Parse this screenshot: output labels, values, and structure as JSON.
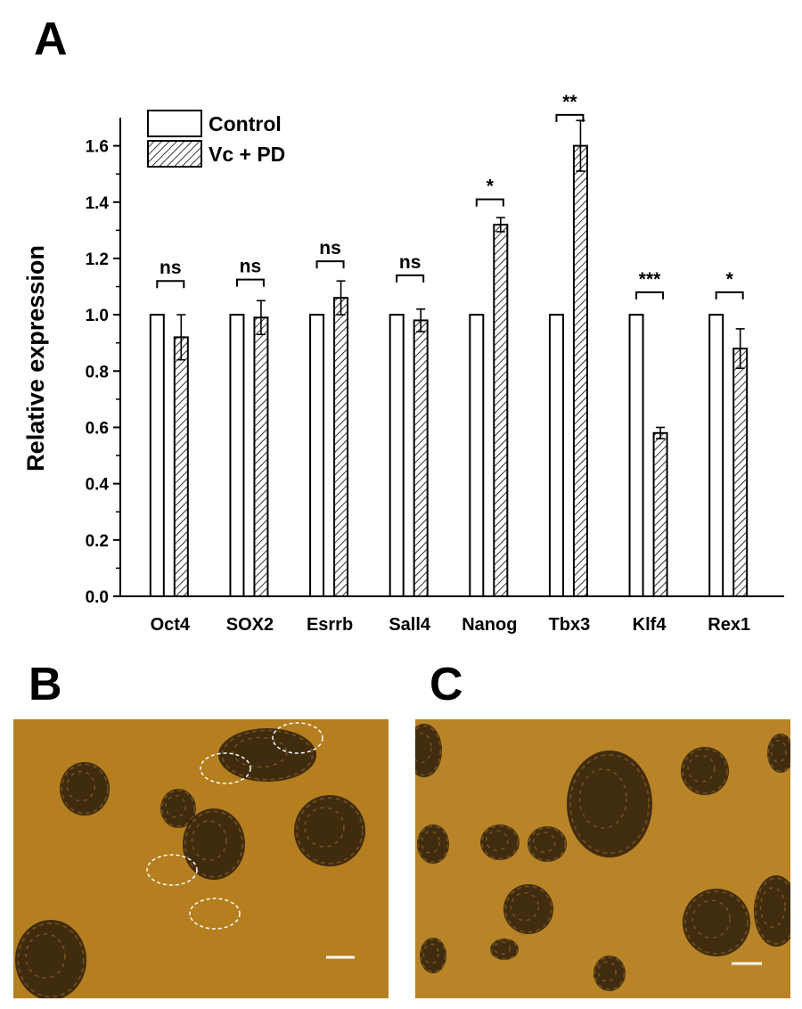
{
  "figure": {
    "panel_labels": {
      "a": "A",
      "b": "B",
      "c": "C"
    }
  },
  "chart_data": {
    "type": "bar",
    "ylabel": "Relative expression",
    "xlabel": "",
    "ylim": [
      0,
      1.7
    ],
    "yticks": [
      "0.0",
      "0.2",
      "0.4",
      "0.6",
      "0.8",
      "1.0",
      "1.2",
      "1.4",
      "1.6"
    ],
    "categories": [
      "Oct4",
      "SOX2",
      "Esrrb",
      "Sall4",
      "Nanog",
      "Tbx3",
      "Klf4",
      "Rex1"
    ],
    "legend_position": "top-left",
    "series": [
      {
        "name": "Control",
        "pattern": "open",
        "values": [
          1.0,
          1.0,
          1.0,
          1.0,
          1.0,
          1.0,
          1.0,
          1.0
        ]
      },
      {
        "name": "Vc + PD",
        "pattern": "hatched",
        "values": [
          0.92,
          0.99,
          1.06,
          0.98,
          1.32,
          1.6,
          0.58,
          0.88
        ],
        "error": [
          0.08,
          0.06,
          0.06,
          0.04,
          0.025,
          0.09,
          0.02,
          0.07
        ]
      }
    ],
    "significance": [
      "ns",
      "ns",
      "ns",
      "ns",
      "*",
      "**",
      "***",
      "*"
    ],
    "significance_y": [
      1.12,
      1.125,
      1.19,
      1.14,
      1.41,
      1.71,
      1.08,
      1.08
    ]
  },
  "micrographs": [
    {
      "panel": "B",
      "background": "#b57e1f",
      "scale_bar": true
    },
    {
      "panel": "C",
      "background": "#b88427",
      "scale_bar": true
    }
  ]
}
